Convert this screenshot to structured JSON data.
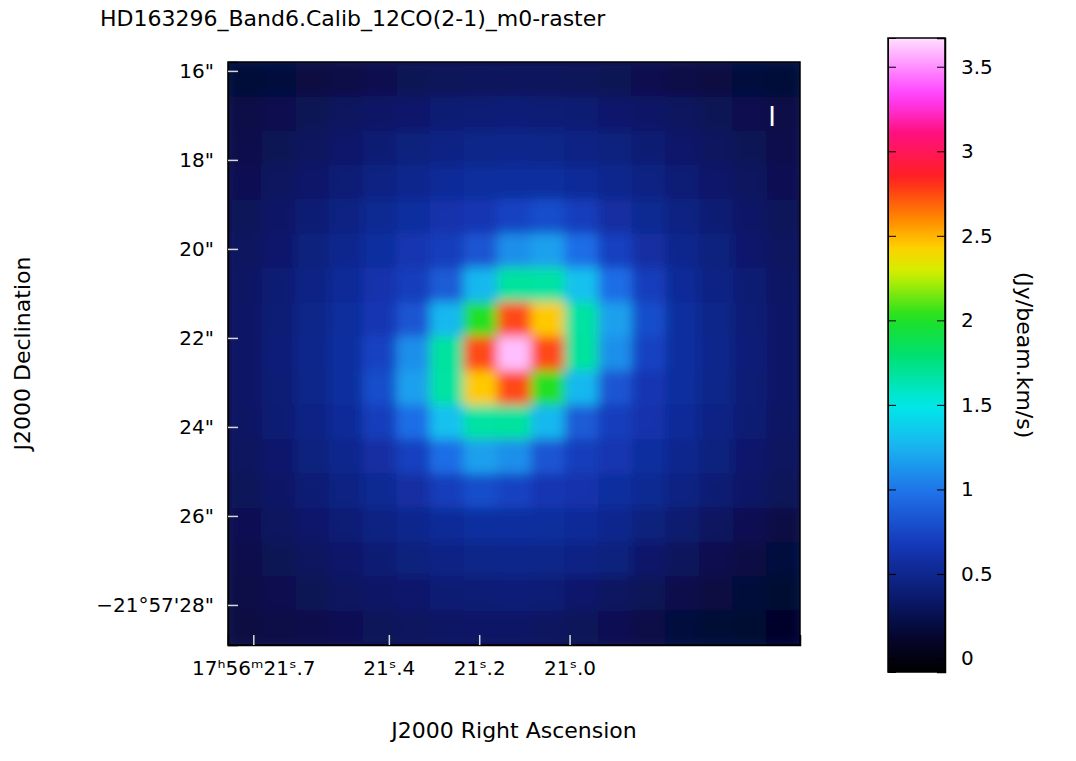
{
  "chart_data": {
    "type": "heatmap",
    "title": "HD163296_Band6.Calib_12CO(2-1)_m0-raster",
    "x_label": "J2000 Right Ascension",
    "y_label": "J2000 Declination",
    "annotation": "I",
    "x": [
      21.719,
      21.6445,
      21.57,
      21.4955,
      21.421,
      21.3465,
      21.272,
      21.1975,
      21.123,
      21.0485,
      20.974,
      20.8995,
      20.825,
      20.7505,
      20.676,
      20.6015,
      20.527
    ],
    "y": [
      16.185,
      16.956,
      17.726,
      18.497,
      19.268,
      20.038,
      20.809,
      21.579,
      22.35,
      23.121,
      23.891,
      24.662,
      25.433,
      26.203,
      26.974,
      27.744,
      28.515
    ],
    "cells": [
      [
        0.16,
        0.18,
        0.2,
        0.22,
        0.25,
        0.27,
        0.29,
        0.3,
        0.3,
        0.3,
        0.29,
        0.27,
        0.25,
        0.22,
        0.2,
        0.18,
        0.16
      ],
      [
        0.22,
        0.25,
        0.27,
        0.31,
        0.34,
        0.36,
        0.39,
        0.4,
        0.41,
        0.4,
        0.39,
        0.36,
        0.34,
        0.31,
        0.27,
        0.25,
        0.22
      ],
      [
        0.24,
        0.27,
        0.31,
        0.35,
        0.39,
        0.43,
        0.46,
        0.48,
        0.49,
        0.48,
        0.46,
        0.43,
        0.39,
        0.35,
        0.31,
        0.27,
        0.24
      ],
      [
        0.26,
        0.31,
        0.35,
        0.4,
        0.45,
        0.5,
        0.54,
        0.56,
        0.57,
        0.57,
        0.54,
        0.5,
        0.45,
        0.4,
        0.35,
        0.31,
        0.26
      ],
      [
        0.29,
        0.34,
        0.39,
        0.45,
        0.52,
        0.57,
        0.62,
        0.65,
        0.73,
        0.79,
        0.69,
        0.58,
        0.52,
        0.45,
        0.39,
        0.34,
        0.29
      ],
      [
        0.31,
        0.36,
        0.43,
        0.5,
        0.57,
        0.64,
        0.69,
        0.83,
        1.1,
        1.17,
        0.96,
        0.72,
        0.58,
        0.5,
        0.43,
        0.36,
        0.31
      ],
      [
        0.33,
        0.39,
        0.46,
        0.54,
        0.62,
        0.69,
        0.86,
        1.27,
        1.68,
        1.67,
        1.31,
        0.96,
        0.69,
        0.54,
        0.46,
        0.39,
        0.33
      ],
      [
        0.34,
        0.4,
        0.48,
        0.56,
        0.65,
        0.83,
        1.27,
        2.02,
        2.75,
        2.45,
        1.67,
        1.17,
        0.79,
        0.57,
        0.48,
        0.4,
        0.34
      ],
      [
        0.34,
        0.41,
        0.49,
        0.57,
        0.73,
        1.1,
        1.68,
        2.75,
        3.6,
        2.75,
        1.68,
        1.1,
        0.73,
        0.57,
        0.49,
        0.41,
        0.34
      ],
      [
        0.34,
        0.4,
        0.48,
        0.57,
        0.79,
        1.17,
        1.67,
        2.45,
        2.75,
        2.02,
        1.27,
        0.83,
        0.65,
        0.56,
        0.48,
        0.4,
        0.34
      ],
      [
        0.33,
        0.39,
        0.46,
        0.54,
        0.69,
        0.96,
        1.31,
        1.67,
        1.68,
        1.27,
        0.86,
        0.69,
        0.62,
        0.54,
        0.46,
        0.39,
        0.33
      ],
      [
        0.31,
        0.36,
        0.43,
        0.5,
        0.58,
        0.72,
        0.96,
        1.17,
        1.1,
        0.83,
        0.69,
        0.64,
        0.57,
        0.5,
        0.43,
        0.36,
        0.31
      ],
      [
        0.29,
        0.34,
        0.39,
        0.45,
        0.52,
        0.58,
        0.69,
        0.79,
        0.73,
        0.65,
        0.62,
        0.57,
        0.52,
        0.45,
        0.39,
        0.34,
        0.29
      ],
      [
        0.26,
        0.31,
        0.35,
        0.4,
        0.45,
        0.5,
        0.54,
        0.57,
        0.57,
        0.56,
        0.54,
        0.5,
        0.43,
        0.37,
        0.31,
        0.26,
        0.21
      ],
      [
        0.24,
        0.27,
        0.31,
        0.35,
        0.39,
        0.43,
        0.46,
        0.48,
        0.49,
        0.48,
        0.46,
        0.43,
        0.35,
        0.3,
        0.25,
        0.21,
        0.18
      ],
      [
        0.22,
        0.25,
        0.27,
        0.31,
        0.34,
        0.36,
        0.39,
        0.4,
        0.41,
        0.4,
        0.36,
        0.32,
        0.28,
        0.24,
        0.2,
        0.17,
        0.14
      ],
      [
        0.2,
        0.22,
        0.24,
        0.26,
        0.29,
        0.31,
        0.33,
        0.34,
        0.34,
        0.32,
        0.29,
        0.26,
        0.22,
        0.18,
        0.15,
        0.13,
        0.11
      ]
    ],
    "xlim": [
      21.756,
      20.49
    ],
    "ylim": [
      28.9,
      15.8
    ],
    "xticks": [
      {
        "value": 21.7,
        "label": "17ʰ56ᵐ21ˢ.7"
      },
      {
        "value": 21.4,
        "label": "21ˢ.4"
      },
      {
        "value": 21.2,
        "label": "21ˢ.2"
      },
      {
        "value": 21.0,
        "label": "21ˢ.0"
      }
    ],
    "yticks": [
      {
        "value": 16,
        "label": "16\""
      },
      {
        "value": 18,
        "label": "18\""
      },
      {
        "value": 20,
        "label": "20\""
      },
      {
        "value": 22,
        "label": "22\""
      },
      {
        "value": 24,
        "label": "24\""
      },
      {
        "value": 26,
        "label": "26\""
      },
      {
        "value": 28,
        "label": "−21°57'28\""
      }
    ],
    "colorbar": {
      "label": "(Jy/beam.km/s)",
      "range": [
        -0.08,
        3.67
      ],
      "ticks": [
        0,
        0.5,
        1,
        1.5,
        2,
        2.5,
        3,
        3.5
      ]
    }
  }
}
